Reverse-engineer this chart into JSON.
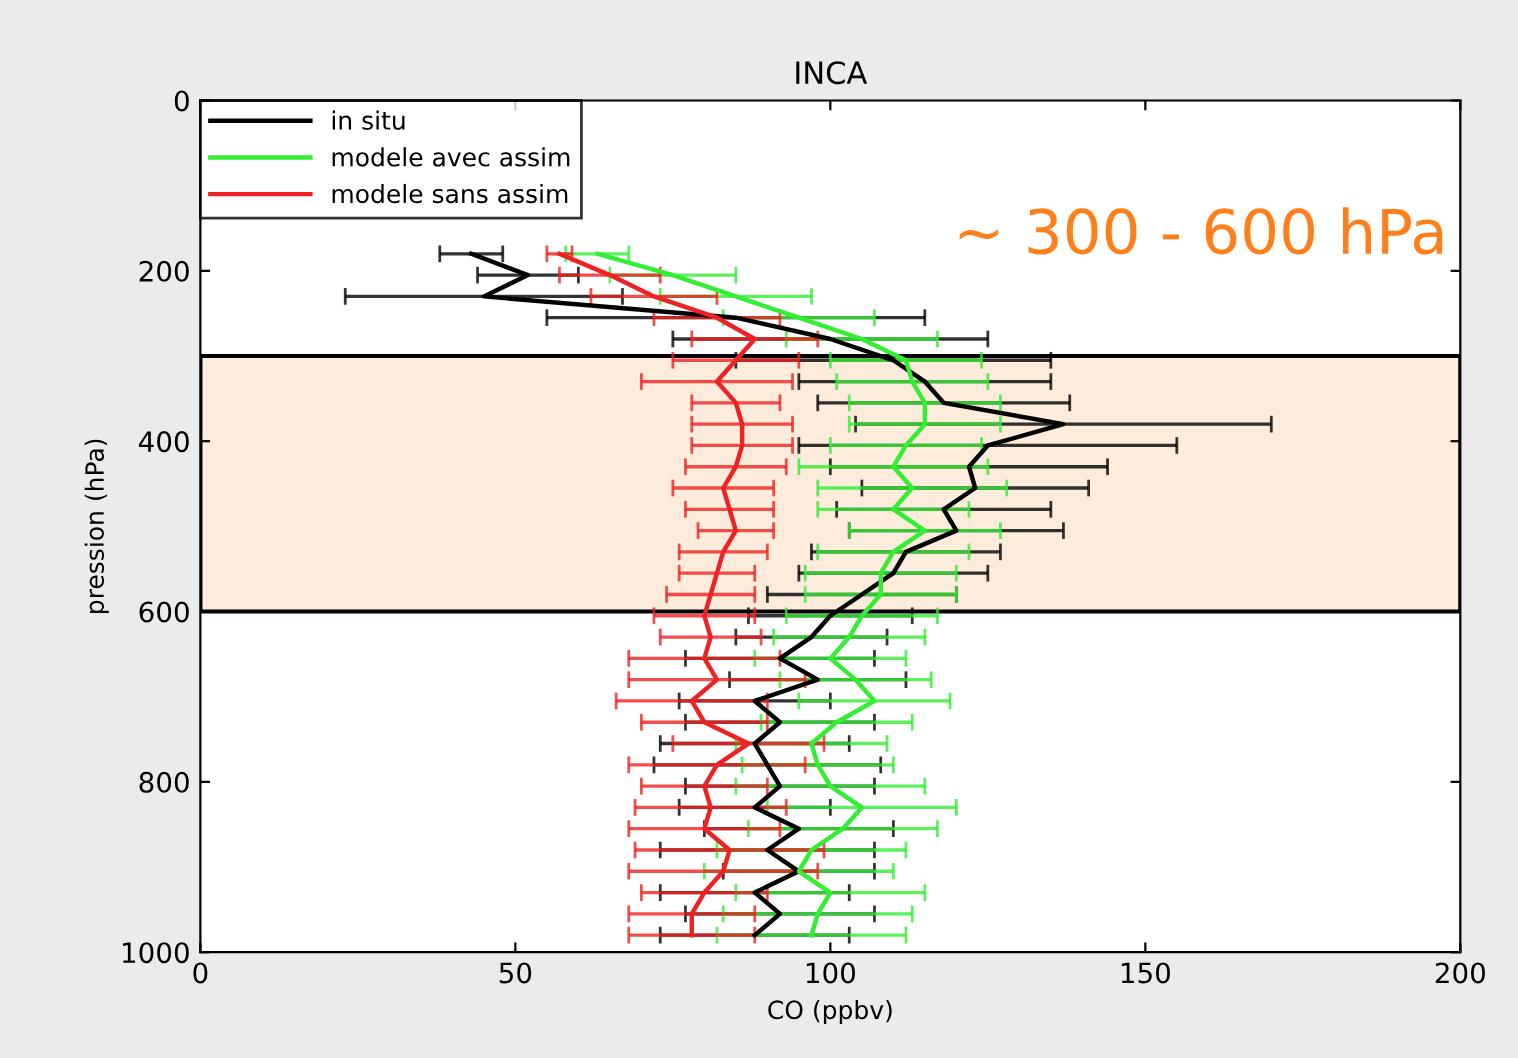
{
  "chart_data": {
    "type": "line",
    "orientation": "horizontal",
    "title": "INCA",
    "xlabel": "CO (ppbv)",
    "ylabel": "pression (hPa)",
    "x": [
      180,
      205,
      230,
      255,
      280,
      305,
      330,
      355,
      380,
      405,
      430,
      455,
      480,
      505,
      530,
      555,
      580,
      605,
      630,
      655,
      680,
      705,
      730,
      755,
      780,
      805,
      830,
      855,
      880,
      905,
      930,
      955,
      980
    ],
    "series": [
      {
        "name": "in situ",
        "color": "#000000",
        "values": [
          43,
          52,
          45,
          85,
          100,
          110,
          115,
          118,
          137,
          125,
          122,
          123,
          118,
          120,
          112,
          110,
          105,
          100,
          97,
          92,
          98,
          88,
          92,
          88,
          90,
          92,
          88,
          95,
          90,
          95,
          88,
          92,
          88
        ],
        "errors": [
          5,
          8,
          22,
          30,
          25,
          25,
          20,
          20,
          33,
          30,
          22,
          18,
          17,
          17,
          15,
          15,
          15,
          13,
          12,
          15,
          14,
          12,
          15,
          15,
          18,
          15,
          12,
          15,
          17,
          12,
          15,
          15,
          15
        ]
      },
      {
        "name": "modele avec assim",
        "color": "#33ee33",
        "values": [
          63,
          75,
          85,
          95,
          105,
          112,
          113,
          115,
          115,
          112,
          110,
          113,
          110,
          115,
          110,
          108,
          108,
          105,
          103,
          100,
          104,
          107,
          101,
          97,
          98,
          100,
          105,
          102,
          97,
          95,
          100,
          98,
          97
        ],
        "errors": [
          5,
          10,
          12,
          12,
          12,
          12,
          12,
          12,
          12,
          12,
          15,
          15,
          12,
          12,
          12,
          12,
          12,
          12,
          12,
          12,
          12,
          12,
          12,
          12,
          12,
          15,
          15,
          15,
          15,
          15,
          15,
          15,
          15
        ]
      },
      {
        "name": "modele sans assim",
        "color": "#ee2222",
        "values": [
          57,
          65,
          72,
          82,
          88,
          85,
          82,
          85,
          86,
          86,
          85,
          83,
          84,
          85,
          83,
          82,
          81,
          80,
          81,
          80,
          82,
          78,
          80,
          87,
          82,
          80,
          81,
          80,
          84,
          83,
          80,
          78,
          78
        ],
        "errors": [
          2,
          8,
          10,
          10,
          10,
          10,
          12,
          7,
          8,
          8,
          8,
          8,
          7,
          6,
          7,
          6,
          7,
          8,
          8,
          12,
          14,
          12,
          10,
          12,
          14,
          10,
          12,
          12,
          15,
          15,
          10,
          10,
          10
        ]
      }
    ],
    "xlim": [
      0,
      200
    ],
    "xticks": [
      0,
      50,
      100,
      150,
      200
    ],
    "ylim": [
      1000,
      0
    ],
    "yticks": [
      0,
      200,
      400,
      600,
      800,
      1000
    ],
    "bands": [
      {
        "axis": "y",
        "from": 300,
        "to": 600,
        "color": "#fdebdc"
      }
    ],
    "annotations": [
      "~ 300 - 600 hPa"
    ],
    "legend": "top left",
    "grid": false,
    "marker": "none",
    "line_style": "solid"
  }
}
